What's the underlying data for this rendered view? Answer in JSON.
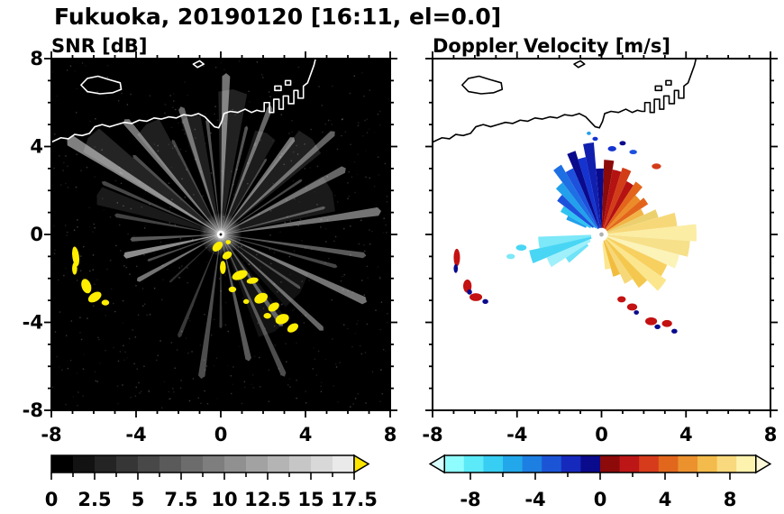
{
  "title": "Fukuoka, 20190120 [16:11, el=0.0]",
  "panels": [
    {
      "title": "SNR [dB]"
    },
    {
      "title": "Doppler Velocity [m/s]"
    }
  ],
  "chart_data": [
    {
      "type": "heatmap",
      "title": "SNR [dB]",
      "xlim": [
        -8,
        8
      ],
      "ylim": [
        -8,
        8
      ],
      "xticks": [
        -8,
        -4,
        0,
        4,
        8
      ],
      "yticks": [
        -8,
        -4,
        0,
        4,
        8
      ],
      "minor_tick_step": 1,
      "background": "#000000",
      "coast_color": "#ffffff",
      "colorbar": {
        "range": [
          0,
          17.5
        ],
        "tick_values": [
          0,
          2.5,
          5,
          7.5,
          10,
          12.5,
          15,
          17.5
        ],
        "tick_labels": [
          "0",
          "2.5",
          "5",
          "7.5",
          "10",
          "12.5",
          "15",
          "17.5"
        ],
        "segments": [
          "#000000",
          "#121212",
          "#242424",
          "#363636",
          "#484848",
          "#5a5a5a",
          "#6c6c6c",
          "#7e7e7e",
          "#909090",
          "#a2a2a2",
          "#b4b4b4",
          "#c6c6c6",
          "#d8d8d8",
          "#eaeaea"
        ],
        "under_arrow": false,
        "over_arrow": true,
        "over_arrow_color": "#ffe600"
      },
      "field": {
        "center": [
          0,
          0
        ],
        "glow_radius": 1.0,
        "beams": [
          [
            8,
            1.5,
            7.5,
            0.45
          ],
          [
            14,
            0.8,
            5.0,
            0.3
          ],
          [
            20,
            9,
            5.5,
            0.1
          ],
          [
            27,
            1.5,
            6.5,
            0.4
          ],
          [
            33,
            0.8,
            4.5,
            0.28
          ],
          [
            41,
            1.2,
            7.0,
            0.38
          ],
          [
            45,
            7,
            6.0,
            0.12
          ],
          [
            52,
            1.5,
            5.5,
            0.45
          ],
          [
            58,
            0.8,
            4.0,
            0.3
          ],
          [
            65,
            6,
            5.0,
            0.11
          ],
          [
            68,
            1.2,
            6.2,
            0.4
          ],
          [
            76,
            0.9,
            5.0,
            0.32
          ],
          [
            85,
            6,
            6.5,
            0.13
          ],
          [
            88,
            1.5,
            7.2,
            0.45
          ],
          [
            97,
            0.9,
            5.2,
            0.32
          ],
          [
            105,
            5,
            5.5,
            0.12
          ],
          [
            108,
            1.4,
            6.0,
            0.4
          ],
          [
            118,
            0.9,
            4.8,
            0.28
          ],
          [
            125,
            6,
            6.0,
            0.12
          ],
          [
            131,
            1.5,
            6.8,
            0.45
          ],
          [
            139,
            0.9,
            5.4,
            0.3
          ],
          [
            145,
            5,
            7.5,
            0.14
          ],
          [
            149,
            1.8,
            8.3,
            0.5
          ],
          [
            157,
            0.9,
            6.0,
            0.28
          ],
          [
            163,
            4,
            6.0,
            0.1
          ],
          [
            170,
            1.1,
            5.0,
            0.26
          ],
          [
            183,
            1.4,
            4.2,
            0.35
          ],
          [
            192,
            1.8,
            4.6,
            0.55
          ],
          [
            199,
            0.9,
            3.6,
            0.3
          ],
          [
            208,
            1.4,
            4.4,
            0.45
          ],
          [
            222,
            0.9,
            3.2,
            0.18
          ],
          [
            247,
            1.1,
            5.0,
            0.22
          ],
          [
            262,
            1.4,
            6.5,
            0.3
          ],
          [
            270,
            0.9,
            4.2,
            0.22
          ],
          [
            283,
            1.4,
            5.8,
            0.35
          ],
          [
            295,
            1.1,
            7.0,
            0.3
          ],
          [
            300,
            9,
            5.0,
            0.07
          ],
          [
            305,
            1.4,
            5.0,
            0.35
          ],
          [
            318,
            1.1,
            6.4,
            0.4
          ],
          [
            325,
            12,
            4.5,
            0.07
          ],
          [
            327,
            0.9,
            4.4,
            0.27
          ],
          [
            336,
            1.4,
            7.4,
            0.45
          ],
          [
            345,
            0.9,
            5.6,
            0.27
          ],
          [
            352,
            1.1,
            6.8,
            0.35
          ]
        ],
        "clutter_color": "#ffee00",
        "clutter": [
          [
            -6.85,
            -1.0,
            0.16,
            0.45,
            8
          ],
          [
            -6.9,
            -1.55,
            0.12,
            0.28,
            0
          ],
          [
            -6.35,
            -2.35,
            0.22,
            0.34,
            20
          ],
          [
            -5.95,
            -2.85,
            0.34,
            0.2,
            30
          ],
          [
            -5.45,
            -3.1,
            0.18,
            0.13,
            0
          ],
          [
            -0.15,
            -0.55,
            0.28,
            0.18,
            40
          ],
          [
            0.35,
            -0.35,
            0.12,
            0.1,
            0
          ],
          [
            0.3,
            -0.95,
            0.24,
            0.16,
            30
          ],
          [
            0.1,
            -1.5,
            0.14,
            0.3,
            0
          ],
          [
            0.9,
            -1.85,
            0.38,
            0.2,
            20
          ],
          [
            1.5,
            -2.1,
            0.28,
            0.14,
            10
          ],
          [
            0.55,
            -2.5,
            0.18,
            0.13,
            0
          ],
          [
            1.2,
            -3.05,
            0.14,
            0.11,
            0
          ],
          [
            1.9,
            -2.9,
            0.33,
            0.22,
            25
          ],
          [
            2.5,
            -3.3,
            0.28,
            0.18,
            30
          ],
          [
            2.2,
            -3.7,
            0.18,
            0.13,
            0
          ],
          [
            2.9,
            -3.85,
            0.33,
            0.22,
            20
          ],
          [
            3.4,
            -4.25,
            0.28,
            0.18,
            30
          ]
        ],
        "noise": {
          "count": 600,
          "seed": 88675123,
          "color": "#ffffff"
        }
      }
    },
    {
      "type": "heatmap",
      "title": "Doppler Velocity [m/s]",
      "xlim": [
        -8,
        8
      ],
      "ylim": [
        -8,
        8
      ],
      "xticks": [
        -8,
        -4,
        0,
        4,
        8
      ],
      "yticks": [
        -8,
        -4,
        0,
        4,
        8
      ],
      "minor_tick_step": 1,
      "background": "#ffffff",
      "coast_color": "#000000",
      "colorbar": {
        "range": [
          -9.6,
          9.6
        ],
        "tick_values": [
          -8,
          -4,
          0,
          4,
          8
        ],
        "tick_labels": [
          "-8",
          "-4",
          "0",
          "4",
          "8"
        ],
        "segments": [
          "#8ffcfd",
          "#5ce9f8",
          "#38cdf2",
          "#22a8ea",
          "#1d7fe1",
          "#1c54d6",
          "#1629bd",
          "#0a0a8c",
          "#8c0a0a",
          "#bd1616",
          "#d63c1b",
          "#e1671d",
          "#eb922f",
          "#f3bb4b",
          "#f9d97d",
          "#fdf2ae"
        ],
        "under_arrow": true,
        "over_arrow": true,
        "under_arrow_color": "#d9ffff",
        "over_arrow_color": "#fdf8d8"
      },
      "field": {
        "center": [
          0,
          0
        ],
        "wedges": [
          [
            88,
            95,
            0.3,
            3.0,
            "#0a0a8c"
          ],
          [
            95,
            102,
            0.3,
            4.2,
            "#101fae"
          ],
          [
            102,
            108,
            0.3,
            3.6,
            "#1433cf"
          ],
          [
            108,
            114,
            0.3,
            4.0,
            "#0a0a8c"
          ],
          [
            114,
            121,
            0.3,
            3.3,
            "#1d51dd"
          ],
          [
            121,
            128,
            0.3,
            3.7,
            "#1e6fe3"
          ],
          [
            128,
            136,
            0.4,
            3.0,
            "#22a0ec"
          ],
          [
            136,
            144,
            0.5,
            2.6,
            "#1d51dd"
          ],
          [
            144,
            152,
            0.6,
            2.2,
            "#2fc3f1"
          ],
          [
            152,
            158,
            0.8,
            1.8,
            "#22a0ec"
          ],
          [
            80,
            88,
            0.3,
            3.4,
            "#8c0a0a"
          ],
          [
            72,
            80,
            0.3,
            3.0,
            "#b51212"
          ],
          [
            64,
            72,
            0.3,
            3.2,
            "#d23c17"
          ],
          [
            56,
            64,
            0.3,
            2.7,
            "#b51212"
          ],
          [
            48,
            56,
            0.3,
            2.9,
            "#e3651c"
          ],
          [
            40,
            48,
            0.3,
            2.4,
            "#ec8c28"
          ],
          [
            32,
            40,
            0.3,
            2.6,
            "#e3651c"
          ],
          [
            24,
            32,
            0.3,
            2.2,
            "#f2b446"
          ],
          [
            16,
            24,
            0.3,
            2.8,
            "#ecd06e"
          ],
          [
            6,
            16,
            0.3,
            3.6,
            "#f7d878"
          ],
          [
            -4,
            6,
            0.3,
            4.5,
            "#fbeda4"
          ],
          [
            -14,
            -4,
            0.3,
            4.2,
            "#f7e08a"
          ],
          [
            -24,
            -14,
            0.3,
            3.8,
            "#fbf3b8"
          ],
          [
            -34,
            -24,
            0.3,
            3.4,
            "#f7d060"
          ],
          [
            -44,
            -34,
            0.3,
            3.7,
            "#fbe68e"
          ],
          [
            -54,
            -44,
            0.3,
            3.0,
            "#f4c84e"
          ],
          [
            -64,
            -54,
            0.3,
            2.5,
            "#f7d878"
          ],
          [
            -74,
            -64,
            0.3,
            2.0,
            "#f2bd3e"
          ],
          [
            -84,
            -74,
            0.4,
            1.6,
            "#fbe68e"
          ],
          [
            182,
            192,
            0.5,
            3.0,
            "#7ce8f8"
          ],
          [
            192,
            202,
            0.5,
            3.5,
            "#49d6f4"
          ],
          [
            202,
            212,
            0.6,
            2.8,
            "#9ff0fa"
          ],
          [
            212,
            220,
            0.8,
            2.0,
            "#6fe3f7"
          ]
        ],
        "specks": [
          [
            0.5,
            3.9,
            0.2,
            0.12,
            "#1433cf"
          ],
          [
            1.0,
            4.15,
            0.15,
            0.1,
            "#0a0a8c"
          ],
          [
            1.5,
            3.75,
            0.18,
            0.1,
            "#1d51dd"
          ],
          [
            -0.3,
            4.35,
            0.13,
            0.09,
            "#1433cf"
          ],
          [
            2.6,
            3.1,
            0.22,
            0.13,
            "#d23c17"
          ],
          [
            -0.6,
            4.6,
            0.1,
            0.08,
            "#22a0ec"
          ],
          [
            -3.8,
            -0.6,
            0.25,
            0.14,
            "#49d6f4"
          ],
          [
            -4.3,
            -1.0,
            0.2,
            0.12,
            "#7ce8f8"
          ]
        ],
        "clutter": [
          [
            -6.85,
            -1.05,
            0.15,
            0.4,
            "#c41111"
          ],
          [
            -6.9,
            -1.55,
            0.1,
            0.2,
            "#0a0a8c"
          ],
          [
            -6.35,
            -2.35,
            0.2,
            0.3,
            "#c41111"
          ],
          [
            -6.25,
            -2.62,
            0.12,
            0.12,
            "#0a0a8c"
          ],
          [
            -5.95,
            -2.85,
            0.3,
            0.18,
            "#c41111"
          ],
          [
            -5.5,
            -3.05,
            0.14,
            0.11,
            "#0a0a8c"
          ],
          [
            0.95,
            -2.95,
            0.2,
            0.14,
            "#c41111"
          ],
          [
            1.45,
            -3.3,
            0.24,
            0.16,
            "#c41111"
          ],
          [
            1.65,
            -3.55,
            0.12,
            0.1,
            "#0a0a8c"
          ],
          [
            2.35,
            -3.95,
            0.28,
            0.18,
            "#c41111"
          ],
          [
            2.65,
            -4.2,
            0.14,
            0.11,
            "#0a0a8c"
          ],
          [
            3.1,
            -4.05,
            0.24,
            0.16,
            "#c41111"
          ],
          [
            3.45,
            -4.4,
            0.14,
            0.11,
            "#0a0a8c"
          ]
        ]
      }
    }
  ],
  "coastline": {
    "main": [
      [
        -8,
        4.2
      ],
      [
        -7.55,
        4.4
      ],
      [
        -7.2,
        4.35
      ],
      [
        -6.9,
        4.55
      ],
      [
        -6.55,
        4.5
      ],
      [
        -6.2,
        4.6
      ],
      [
        -5.95,
        4.9
      ],
      [
        -5.6,
        5.0
      ],
      [
        -5.25,
        4.9
      ],
      [
        -4.9,
        5.0
      ],
      [
        -4.55,
        5.1
      ],
      [
        -4.2,
        5.05
      ],
      [
        -3.85,
        5.2
      ],
      [
        -3.5,
        5.15
      ],
      [
        -3.15,
        5.3
      ],
      [
        -2.8,
        5.25
      ],
      [
        -2.45,
        5.35
      ],
      [
        -2.1,
        5.3
      ],
      [
        -1.75,
        5.45
      ],
      [
        -1.4,
        5.4
      ],
      [
        -1.05,
        5.5
      ],
      [
        -0.75,
        5.35
      ],
      [
        -0.5,
        5.1
      ],
      [
        -0.3,
        4.9
      ],
      [
        -0.1,
        4.85
      ],
      [
        0.05,
        5.15
      ],
      [
        0.15,
        5.5
      ],
      [
        0.45,
        5.6
      ],
      [
        0.8,
        5.55
      ],
      [
        1.15,
        5.7
      ],
      [
        1.45,
        5.55
      ],
      [
        1.7,
        5.65
      ],
      [
        1.9,
        5.6
      ],
      [
        2.05,
        5.6
      ],
      [
        2.05,
        6.0
      ],
      [
        2.3,
        6.0
      ],
      [
        2.3,
        5.55
      ],
      [
        2.5,
        5.55
      ],
      [
        2.5,
        6.15
      ],
      [
        2.75,
        6.15
      ],
      [
        2.75,
        5.7
      ],
      [
        2.95,
        5.7
      ],
      [
        2.95,
        6.3
      ],
      [
        3.2,
        6.3
      ],
      [
        3.2,
        5.95
      ],
      [
        3.45,
        5.95
      ],
      [
        3.45,
        6.55
      ],
      [
        3.65,
        6.55
      ],
      [
        3.65,
        6.2
      ],
      [
        3.9,
        6.2
      ],
      [
        3.9,
        6.75
      ],
      [
        4.1,
        6.9
      ],
      [
        4.25,
        7.3
      ],
      [
        4.4,
        7.7
      ],
      [
        4.5,
        8.1
      ]
    ],
    "island": [
      [
        -6.6,
        6.8
      ],
      [
        -6.3,
        7.1
      ],
      [
        -5.8,
        7.2
      ],
      [
        -5.3,
        7.05
      ],
      [
        -4.75,
        6.9
      ],
      [
        -4.7,
        6.6
      ],
      [
        -5.1,
        6.45
      ],
      [
        -5.7,
        6.4
      ],
      [
        -6.3,
        6.5
      ]
    ],
    "islets": [
      [
        [
          2.55,
          6.55
        ],
        [
          2.85,
          6.55
        ],
        [
          2.85,
          6.75
        ],
        [
          2.55,
          6.75
        ]
      ],
      [
        [
          3.05,
          6.8
        ],
        [
          3.3,
          6.8
        ],
        [
          3.3,
          7.0
        ],
        [
          3.05,
          7.0
        ]
      ],
      [
        [
          -1.3,
          7.75
        ],
        [
          -1.0,
          7.9
        ],
        [
          -0.8,
          7.75
        ],
        [
          -1.1,
          7.6
        ]
      ]
    ]
  }
}
